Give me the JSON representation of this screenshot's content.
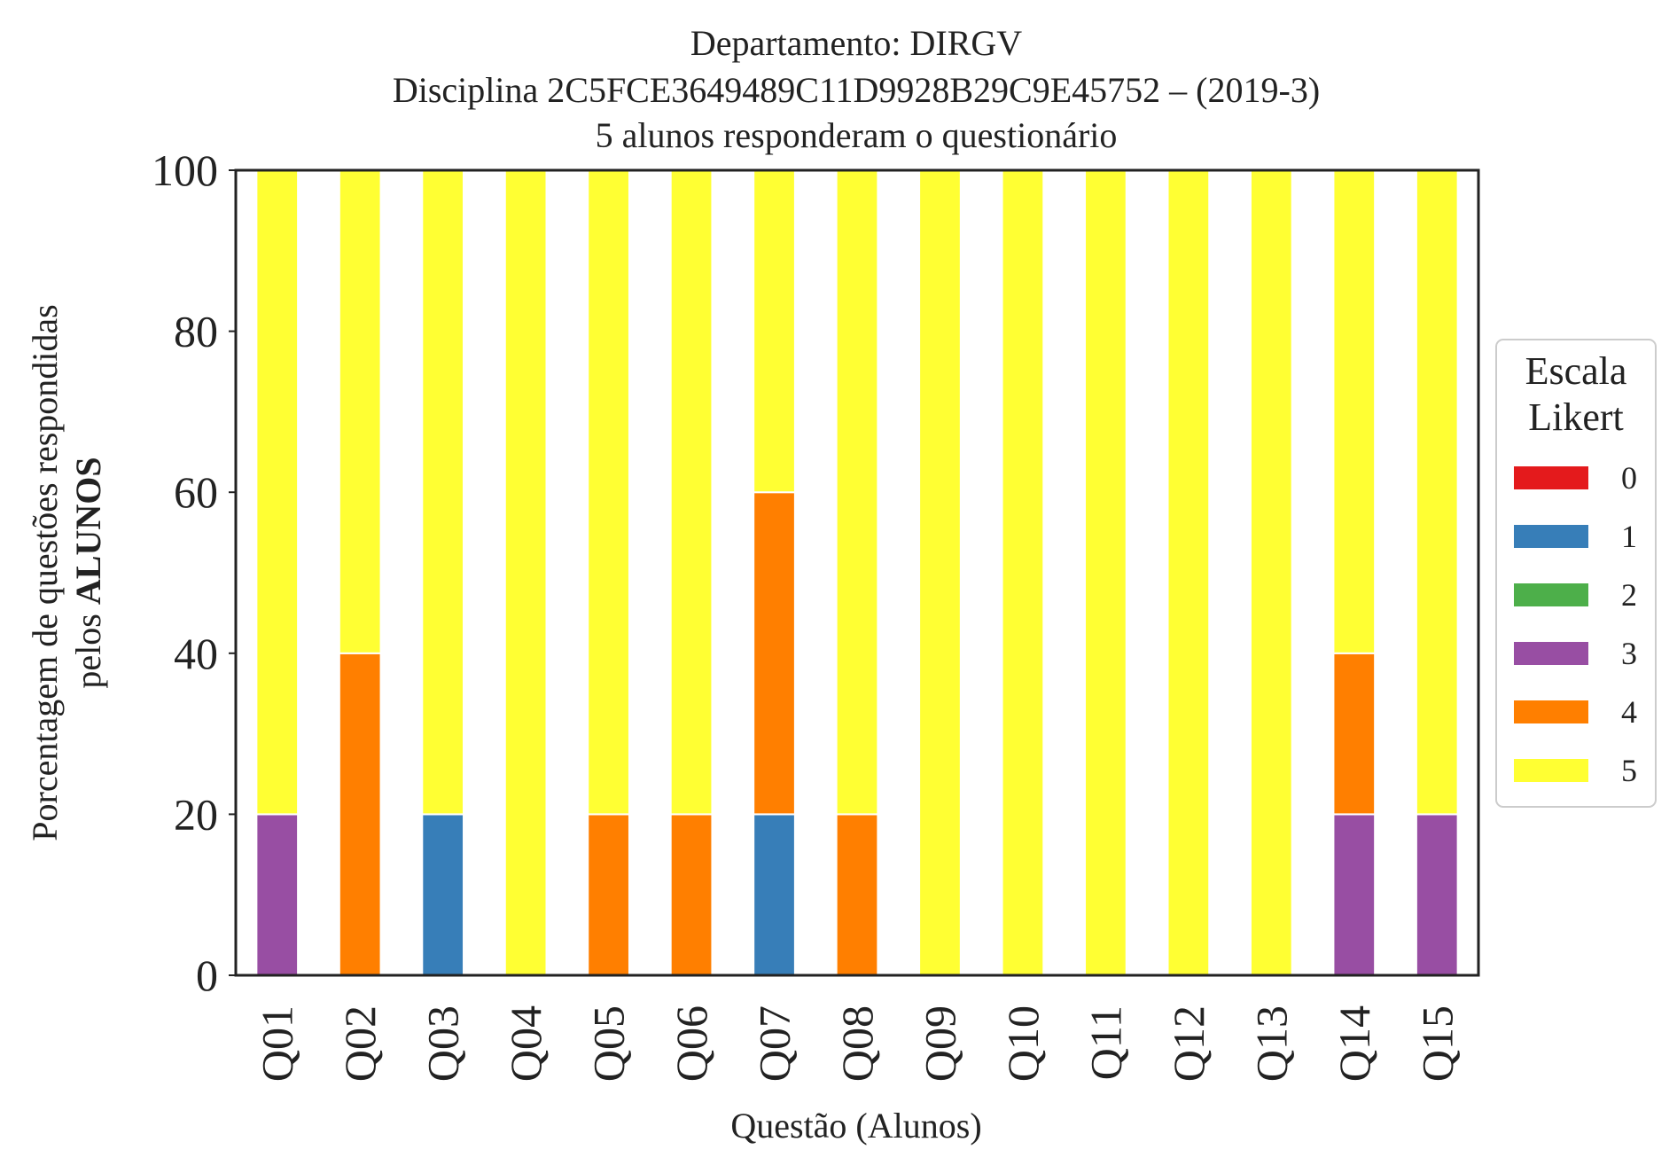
{
  "chart_data": {
    "type": "bar",
    "stacked": true,
    "title_lines": [
      "Departamento: DIRGV",
      "Disciplina 2C5FCE3649489C11D9928B29C9E45752 – (2019-3)",
      "5 alunos responderam o questionário"
    ],
    "xlabel": "Questão (Alunos)",
    "ylabel_line1": "Porcentagem de questões respondidas",
    "ylabel_line2_prefix": "pelos ",
    "ylabel_line2_bold": "ALUNOS",
    "ylim": [
      0,
      100
    ],
    "yticks": [
      0,
      20,
      40,
      60,
      80,
      100
    ],
    "grid": false,
    "categories": [
      "Q01",
      "Q02",
      "Q03",
      "Q04",
      "Q05",
      "Q06",
      "Q07",
      "Q08",
      "Q09",
      "Q10",
      "Q11",
      "Q12",
      "Q13",
      "Q14",
      "Q15"
    ],
    "legend": {
      "title_lines": [
        "Escala",
        "Likert"
      ],
      "placement": "right-center"
    },
    "series": [
      {
        "name": "0",
        "color": "#e41a1c",
        "values": [
          0,
          0,
          0,
          0,
          0,
          0,
          0,
          0,
          0,
          0,
          0,
          0,
          0,
          0,
          0
        ]
      },
      {
        "name": "1",
        "color": "#377eb8",
        "values": [
          0,
          0,
          20,
          0,
          0,
          0,
          20,
          0,
          0,
          0,
          0,
          0,
          0,
          0,
          0
        ]
      },
      {
        "name": "2",
        "color": "#4daf4a",
        "values": [
          0,
          0,
          0,
          0,
          0,
          0,
          0,
          0,
          0,
          0,
          0,
          0,
          0,
          0,
          0
        ]
      },
      {
        "name": "3",
        "color": "#984ea3",
        "values": [
          20,
          0,
          0,
          0,
          0,
          0,
          0,
          0,
          0,
          0,
          0,
          0,
          0,
          20,
          20
        ]
      },
      {
        "name": "4",
        "color": "#ff7f00",
        "values": [
          0,
          40,
          0,
          0,
          20,
          20,
          40,
          20,
          0,
          0,
          0,
          0,
          0,
          20,
          0
        ]
      },
      {
        "name": "5",
        "color": "#ffff33",
        "values": [
          80,
          60,
          80,
          100,
          80,
          80,
          40,
          80,
          100,
          100,
          100,
          100,
          100,
          60,
          80
        ]
      }
    ]
  }
}
